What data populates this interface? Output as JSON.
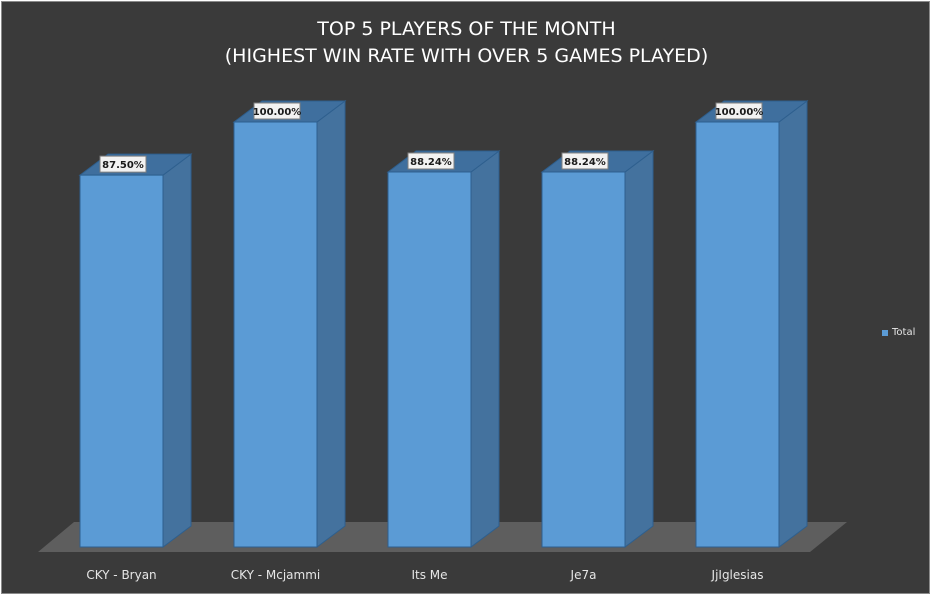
{
  "chart_data": {
    "type": "bar",
    "title_lines": [
      "TOP 5 PLAYERS OF THE MONTH",
      "(HIGHEST WIN RATE WITH OVER 5 GAMES PLAYED)"
    ],
    "categories": [
      "CKY - Bryan",
      "CKY - Mcjammi",
      "Its Me",
      "Je7a",
      "JjIglesias"
    ],
    "series": [
      {
        "name": "Total",
        "values": [
          87.5,
          100.0,
          88.24,
          88.24,
          100.0
        ]
      }
    ],
    "data_labels": [
      "87.50%",
      "100.00%",
      "88.24%",
      "88.24%",
      "100.00%"
    ],
    "ylim": [
      0,
      100
    ],
    "value_unit": "%",
    "three_d": true,
    "grid": false,
    "legend_position": "right",
    "colors": {
      "background": "#3a3a3a",
      "bar_front": "#5b9bd5",
      "bar_side": "#44729e",
      "bar_top": "#3f6f9e",
      "bar_edge": "#2e5f8e",
      "floor": "#5e5e5e",
      "text": "#e6e6e6",
      "label_bg": "#f2f2f2",
      "label_text": "#1a1a1a"
    }
  }
}
